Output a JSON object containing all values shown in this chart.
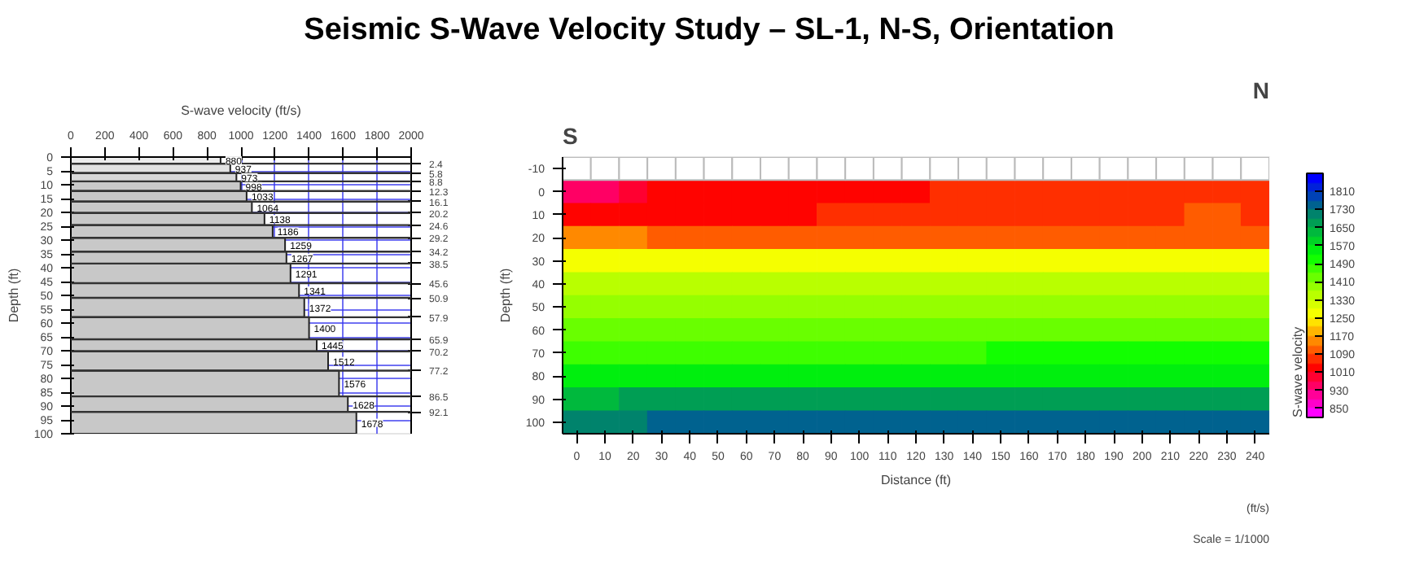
{
  "chart_data": [
    {
      "type": "bar",
      "orientation": "horizontal",
      "title": "Seismic S-Wave Velocity Study – SL-1, N-S, Orientation",
      "xlabel": "S-wave velocity (ft/s)",
      "ylabel": "Depth (ft)",
      "x": [
        1.2,
        4.1,
        7.3,
        10.55,
        14.2,
        18.15,
        22.4,
        26.9,
        31.7,
        36.35,
        42.05,
        48.25,
        54.4,
        61.9,
        68.05,
        73.7,
        81.85,
        89.3,
        96.05
      ],
      "ref_lines": [
        {
          "axis": "y",
          "value": 2.4,
          "label": "2.4"
        },
        {
          "axis": "y",
          "value": 5.8,
          "label": "5.8"
        },
        {
          "axis": "y",
          "value": 8.8,
          "label": "8.8"
        },
        {
          "axis": "y",
          "value": 12.3,
          "label": "12.3"
        },
        {
          "axis": "y",
          "value": 16.1,
          "label": "16.1"
        },
        {
          "axis": "y",
          "value": 20.2,
          "label": "20.2"
        },
        {
          "axis": "y",
          "value": 24.6,
          "label": "24.6"
        },
        {
          "axis": "y",
          "value": 29.2,
          "label": "29.2"
        },
        {
          "axis": "y",
          "value": 34.2,
          "label": "34.2"
        },
        {
          "axis": "y",
          "value": 38.5,
          "label": "38.5"
        },
        {
          "axis": "y",
          "value": 45.6,
          "label": "45.6"
        },
        {
          "axis": "y",
          "value": 50.9,
          "label": "50.9"
        },
        {
          "axis": "y",
          "value": 57.9,
          "label": "57.9"
        },
        {
          "axis": "y",
          "value": 65.9,
          "label": "65.9"
        },
        {
          "axis": "y",
          "value": 70.2,
          "label": "70.2"
        },
        {
          "axis": "y",
          "value": 77.2,
          "label": "77.2"
        },
        {
          "axis": "y",
          "value": 86.5,
          "label": "86.5"
        },
        {
          "axis": "y",
          "value": 92.1,
          "label": "92.1"
        }
      ],
      "values": [
        880,
        937,
        973,
        998,
        1033,
        1064,
        1138,
        1186,
        1259,
        1267,
        1291,
        1341,
        1372,
        1400,
        1445,
        1512,
        1576,
        1628,
        1678
      ],
      "colors": [
        "#ececec",
        "#e2e2e2",
        "#d8d8d8",
        "#c8c8c8",
        "#c8c8c8",
        "#c8c8c8",
        "#c8c8c8",
        "#c8c8c8",
        "#c8c8c8",
        "#c8c8c8",
        "#c8c8c8",
        "#c8c8c8",
        "#c8c8c8",
        "#c8c8c8",
        "#c8c8c8",
        "#c8c8c8",
        "#c8c8c8",
        "#c8c8c8",
        "#c8c8c8"
      ],
      "data_labels": true,
      "xlim": [
        0,
        2000
      ],
      "xticks": [
        0,
        200,
        400,
        600,
        800,
        1000,
        1200,
        1400,
        1600,
        1800,
        2000
      ],
      "ylim": [
        100,
        0
      ],
      "yticks": [
        0,
        5,
        10,
        15,
        20,
        25,
        30,
        35,
        40,
        45,
        50,
        55,
        60,
        65,
        70,
        75,
        80,
        85,
        90,
        95,
        100
      ],
      "grid": true
    },
    {
      "type": "heatmap",
      "xlabel": "Distance (ft)",
      "ylabel": "Depth (ft)",
      "clabel": "S-wave velocity",
      "annotations": [
        "S",
        "N",
        "(ft/s)",
        "Scale = 1/1000"
      ],
      "categories": [
        "0",
        "10",
        "20",
        "30",
        "40",
        "50",
        "60",
        "70",
        "80",
        "90",
        "100",
        "110",
        "120",
        "130",
        "140",
        "150",
        "160",
        "170",
        "180",
        "190",
        "200",
        "210",
        "220",
        "230",
        "240"
      ],
      "y_categories": [
        "-10",
        "0",
        "10",
        "20",
        "30",
        "40",
        "50",
        "60",
        "70",
        "80",
        "90",
        "100"
      ],
      "cells": [
        [
          null,
          null,
          null,
          null,
          null,
          null,
          null,
          null,
          null,
          null,
          null,
          null,
          null,
          null,
          null,
          null,
          null,
          null,
          null,
          null,
          null,
          null,
          null,
          null,
          null
        ],
        [
          930,
          930,
          970,
          1010,
          1010,
          1010,
          1010,
          1010,
          1010,
          1010,
          1010,
          1010,
          1010,
          1050,
          1050,
          1050,
          1050,
          1050,
          1050,
          1050,
          1050,
          1050,
          1050,
          1050,
          1050
        ],
        [
          1010,
          1010,
          1010,
          1010,
          1010,
          1010,
          1010,
          1010,
          1010,
          1050,
          1050,
          1050,
          1050,
          1050,
          1050,
          1050,
          1050,
          1050,
          1050,
          1050,
          1050,
          1050,
          1090,
          1090,
          1050
        ],
        [
          1130,
          1130,
          1130,
          1110,
          1090,
          1090,
          1090,
          1090,
          1090,
          1090,
          1090,
          1090,
          1090,
          1090,
          1090,
          1090,
          1090,
          1090,
          1090,
          1090,
          1090,
          1090,
          1090,
          1090,
          1090
        ],
        [
          1250,
          1250,
          1250,
          1250,
          1250,
          1250,
          1250,
          1250,
          1250,
          1250,
          1250,
          1250,
          1250,
          1250,
          1250,
          1250,
          1250,
          1250,
          1250,
          1250,
          1250,
          1250,
          1250,
          1250,
          1250
        ],
        [
          1330,
          1330,
          1330,
          1330,
          1330,
          1330,
          1330,
          1330,
          1330,
          1330,
          1330,
          1330,
          1330,
          1330,
          1330,
          1330,
          1330,
          1330,
          1330,
          1330,
          1330,
          1330,
          1330,
          1330,
          1330
        ],
        [
          1370,
          1370,
          1370,
          1370,
          1370,
          1370,
          1370,
          1370,
          1370,
          1370,
          1370,
          1370,
          1370,
          1370,
          1370,
          1370,
          1370,
          1370,
          1370,
          1370,
          1370,
          1370,
          1370,
          1370,
          1370
        ],
        [
          1410,
          1410,
          1410,
          1410,
          1410,
          1410,
          1410,
          1410,
          1410,
          1410,
          1410,
          1410,
          1410,
          1410,
          1410,
          1410,
          1410,
          1410,
          1410,
          1410,
          1410,
          1410,
          1410,
          1410,
          1410
        ],
        [
          1450,
          1450,
          1450,
          1450,
          1450,
          1450,
          1450,
          1450,
          1450,
          1450,
          1450,
          1450,
          1450,
          1450,
          1450,
          1490,
          1490,
          1490,
          1490,
          1490,
          1490,
          1490,
          1490,
          1490,
          1490
        ],
        [
          1530,
          1530,
          1530,
          1530,
          1530,
          1530,
          1530,
          1530,
          1530,
          1530,
          1530,
          1530,
          1530,
          1530,
          1530,
          1530,
          1530,
          1530,
          1530,
          1530,
          1530,
          1530,
          1530,
          1530,
          1530
        ],
        [
          1610,
          1610,
          1650,
          1650,
          1650,
          1650,
          1650,
          1650,
          1650,
          1650,
          1650,
          1650,
          1650,
          1650,
          1650,
          1650,
          1650,
          1650,
          1650,
          1650,
          1650,
          1650,
          1650,
          1650,
          1650
        ],
        [
          1690,
          1690,
          1690,
          1730,
          1730,
          1730,
          1730,
          1730,
          1730,
          1730,
          1730,
          1730,
          1730,
          1730,
          1730,
          1730,
          1730,
          1730,
          1730,
          1730,
          1730,
          1730,
          1730,
          1730,
          1730
        ]
      ],
      "clim": [
        810,
        1890
      ],
      "cticks": [
        850,
        930,
        1010,
        1090,
        1170,
        1250,
        1330,
        1410,
        1490,
        1570,
        1650,
        1730,
        1810
      ]
    }
  ]
}
